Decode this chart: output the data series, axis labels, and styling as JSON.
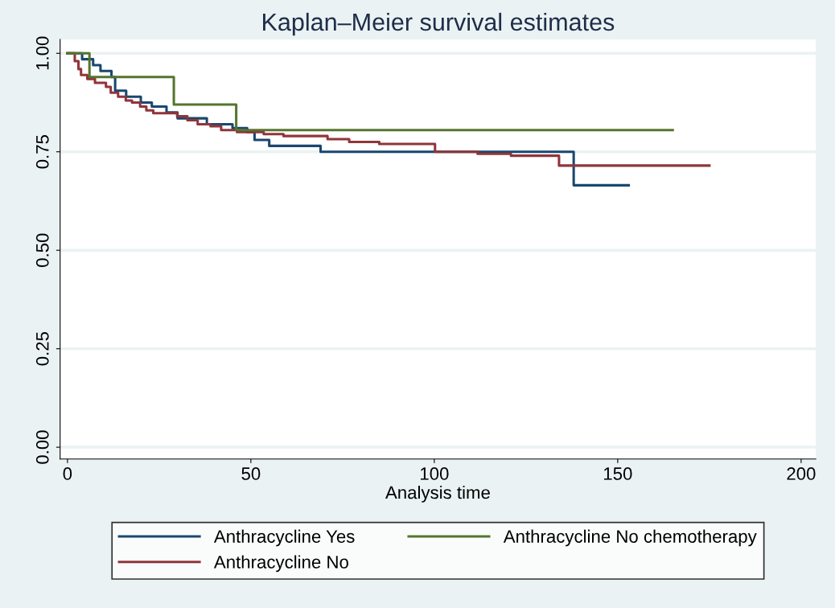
{
  "chart_data": {
    "type": "step",
    "title": "Kaplan–Meier survival estimates",
    "xlabel": "Analysis time",
    "xlim": [
      -2,
      204
    ],
    "ylim": [
      -0.03,
      1.035
    ],
    "xticks": [
      0,
      50,
      100,
      150,
      200
    ],
    "yticks": [
      {
        "value": 0,
        "label": "0.00"
      },
      {
        "value": 0.25,
        "label": "0.25"
      },
      {
        "value": 0.5,
        "label": "0.50"
      },
      {
        "value": 0.75,
        "label": "0.75"
      },
      {
        "value": 1,
        "label": "1.00"
      }
    ],
    "grid": "y",
    "legend": "bottom",
    "marker": "none",
    "line_style": "solid",
    "series": [
      {
        "name": "Anthracycline Yes",
        "color": "#1a476f",
        "x": [
          0,
          4,
          7,
          9,
          12,
          13,
          16,
          20,
          23,
          27,
          30,
          38,
          45,
          49,
          51,
          55,
          69,
          138,
          153
        ],
        "values": [
          1.0,
          0.985,
          0.97,
          0.955,
          0.94,
          0.905,
          0.89,
          0.875,
          0.865,
          0.85,
          0.835,
          0.82,
          0.81,
          0.8,
          0.78,
          0.765,
          0.75,
          0.665,
          0.665
        ]
      },
      {
        "name": "Anthracycline No",
        "color": "#90353b",
        "x": [
          0,
          2,
          3,
          3.7,
          5.4,
          7.5,
          10.5,
          11.8,
          13.8,
          15.9,
          17.6,
          19.8,
          21.5,
          23.4,
          29.9,
          32.7,
          35.5,
          39,
          41.9,
          46.2,
          53.5,
          58.9,
          70.9,
          76.8,
          85,
          100.2,
          111.8,
          120.9,
          134,
          175
        ],
        "values": [
          1.0,
          0.98,
          0.96,
          0.945,
          0.935,
          0.925,
          0.915,
          0.9,
          0.89,
          0.88,
          0.875,
          0.865,
          0.855,
          0.848,
          0.84,
          0.83,
          0.82,
          0.815,
          0.805,
          0.8,
          0.795,
          0.79,
          0.782,
          0.775,
          0.77,
          0.75,
          0.745,
          0.74,
          0.715,
          0.715
        ]
      },
      {
        "name": "Anthracycline No chemotherapy",
        "color": "#55752f",
        "x": [
          0,
          6,
          29,
          46,
          165
        ],
        "values": [
          1.0,
          0.94,
          0.87,
          0.805,
          0.805
        ]
      }
    ]
  }
}
